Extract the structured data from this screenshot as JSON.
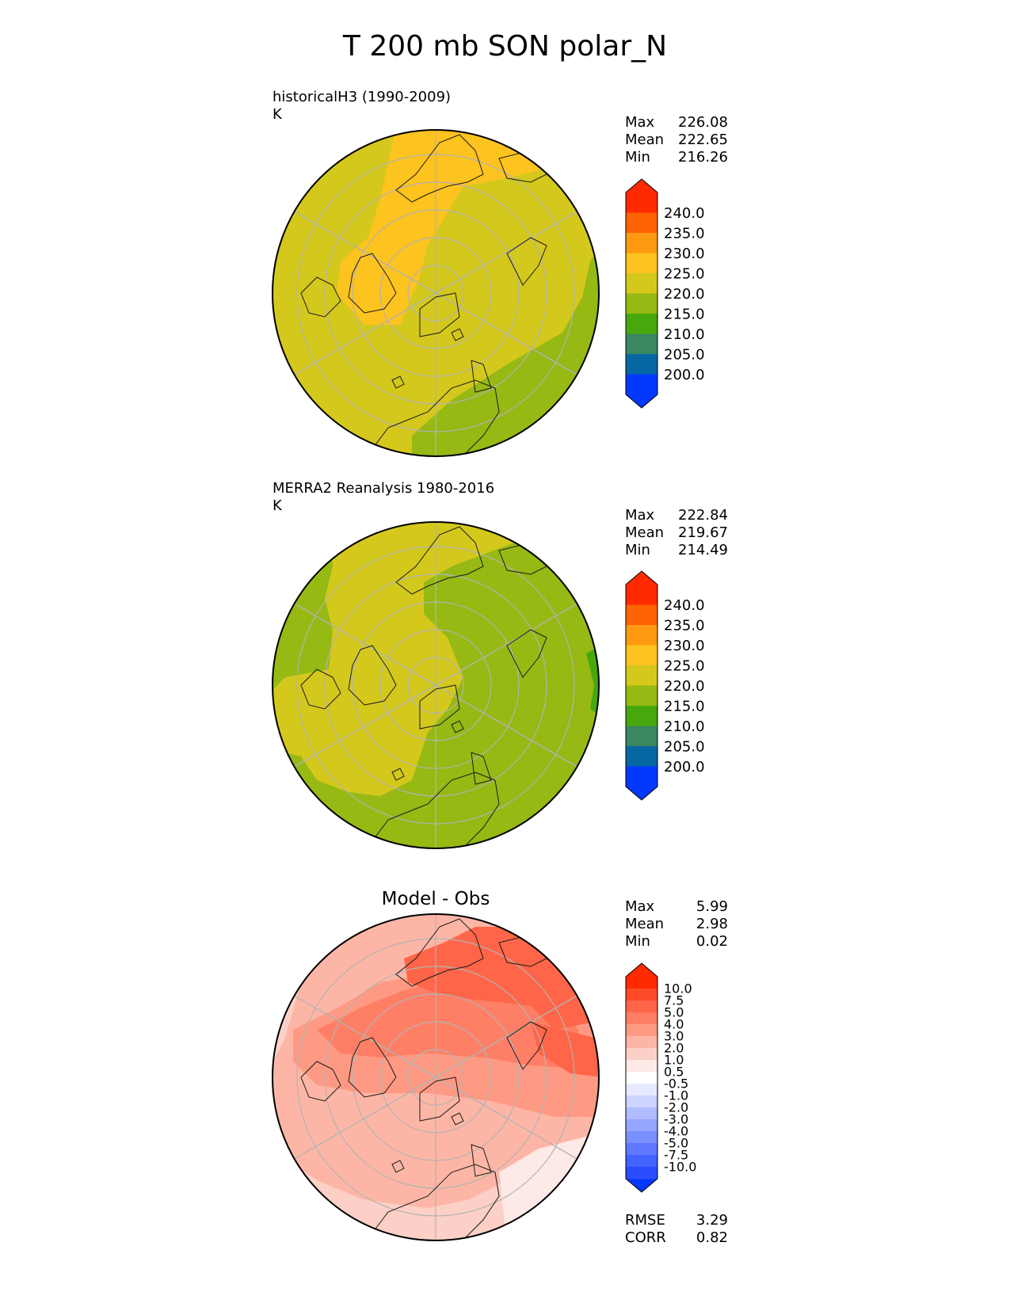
{
  "figure_title": "T 200 mb SON polar_N",
  "panels": [
    {
      "title": "historicalH3 (1990-2009)",
      "units": "K",
      "stats": [
        {
          "label": "Max",
          "value": "226.08"
        },
        {
          "label": "Mean",
          "value": "222.65"
        },
        {
          "label": "Min",
          "value": "216.26"
        }
      ]
    },
    {
      "title": "MERRA2 Reanalysis 1980-2016",
      "units": "K",
      "stats": [
        {
          "label": "Max",
          "value": "222.84"
        },
        {
          "label": "Mean",
          "value": "219.67"
        },
        {
          "label": "Min",
          "value": "214.49"
        }
      ]
    },
    {
      "title": "Model - Obs",
      "stats": [
        {
          "label": "Max",
          "value": "5.99"
        },
        {
          "label": "Mean",
          "value": "2.98"
        },
        {
          "label": "Min",
          "value": "0.02"
        }
      ],
      "metrics": [
        {
          "label": "RMSE",
          "value": "3.29"
        },
        {
          "label": "CORR",
          "value": "0.82"
        }
      ]
    }
  ],
  "colorbars": {
    "field": {
      "ticks": [
        "240.0",
        "235.0",
        "230.0",
        "225.0",
        "220.0",
        "215.0",
        "210.0",
        "205.0",
        "200.0"
      ],
      "colors": [
        "#ff2a00",
        "#ff6200",
        "#fe9a11",
        "#fdc31e",
        "#d4c81d",
        "#96b914",
        "#47a80d",
        "#3a8761",
        "#0767a4",
        "#0438ff"
      ],
      "top_color": "#ff2a00",
      "bottom_color": "#0438ff"
    },
    "diff": {
      "ticks": [
        "10.0",
        "7.5",
        "5.0",
        "4.0",
        "3.0",
        "2.0",
        "1.0",
        "0.5",
        "-0.5",
        "-1.0",
        "-2.0",
        "-3.0",
        "-4.0",
        "-5.0",
        "-7.5",
        "-10.0"
      ],
      "colors": [
        "#ff2a00",
        "#ff4a28",
        "#ff6548",
        "#fe7f65",
        "#fe9a84",
        "#fdb6a6",
        "#fcd0c6",
        "#fde9e5",
        "#ffffff",
        "#e6e9ff",
        "#ccd4ff",
        "#b0bcff",
        "#95a6ff",
        "#7b90ff",
        "#5f78ff",
        "#4462ff",
        "#2a4cff"
      ],
      "top_color": "#ff2a00",
      "bottom_color": "#0438ff"
    }
  },
  "chart_data": [
    {
      "type": "heatmap",
      "projection": "north polar stereographic",
      "title": "historicalH3 (1990-2009)",
      "units": "K",
      "levels": [
        200.0,
        205.0,
        210.0,
        215.0,
        220.0,
        225.0,
        230.0,
        235.0,
        240.0
      ],
      "dominant_range": [
        220.0,
        225.0
      ],
      "warm_band_range": [
        225.0,
        230.0
      ],
      "cool_region_range": [
        215.0,
        220.0
      ],
      "stats": {
        "max": 226.08,
        "mean": 222.65,
        "min": 216.26
      }
    },
    {
      "type": "heatmap",
      "projection": "north polar stereographic",
      "title": "MERRA2 Reanalysis 1980-2016",
      "units": "K",
      "levels": [
        200.0,
        205.0,
        210.0,
        215.0,
        220.0,
        225.0,
        230.0,
        235.0,
        240.0
      ],
      "region_ranges": [
        [
          220.0,
          225.0
        ],
        [
          215.0,
          220.0
        ],
        [
          210.0,
          215.0
        ]
      ],
      "stats": {
        "max": 222.84,
        "mean": 219.67,
        "min": 214.49
      }
    },
    {
      "type": "heatmap",
      "projection": "north polar stereographic",
      "title": "Model - Obs",
      "levels": [
        -10.0,
        -7.5,
        -5.0,
        -4.0,
        -3.0,
        -2.0,
        -1.0,
        -0.5,
        0.5,
        1.0,
        2.0,
        3.0,
        4.0,
        5.0,
        7.5,
        10.0
      ],
      "region_ranges": [
        [
          5.0,
          7.5
        ],
        [
          4.0,
          5.0
        ],
        [
          3.0,
          4.0
        ],
        [
          2.0,
          3.0
        ],
        [
          1.0,
          2.0
        ],
        [
          0.5,
          1.0
        ]
      ],
      "stats": {
        "max": 5.99,
        "mean": 2.98,
        "min": 0.02,
        "rmse": 3.29,
        "corr": 0.82
      }
    }
  ]
}
